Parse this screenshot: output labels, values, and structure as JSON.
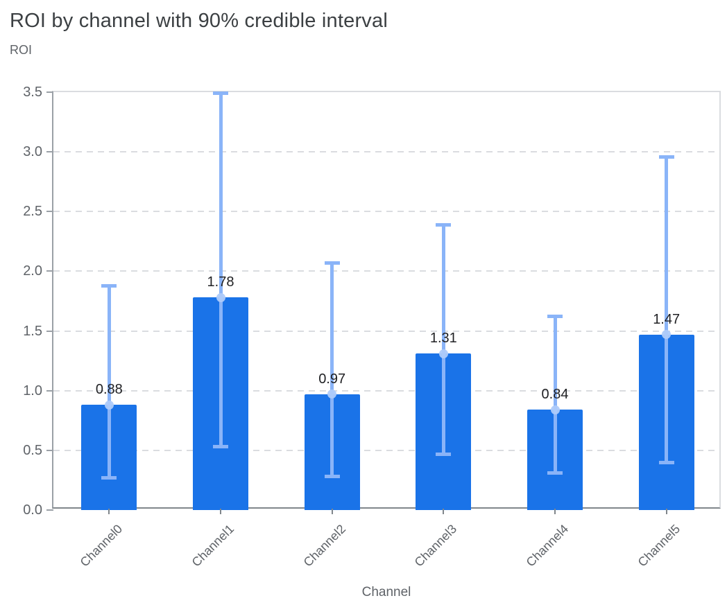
{
  "chart": {
    "title": "ROI by channel with 90% credible interval",
    "y_axis_title": "ROI",
    "x_axis_title": "Channel"
  },
  "chart_data": {
    "type": "bar",
    "title": "ROI by channel with 90% credible interval",
    "xlabel": "Channel",
    "ylabel": "ROI",
    "categories": [
      "Channel0",
      "Channel1",
      "Channel2",
      "Channel3",
      "Channel4",
      "Channel5"
    ],
    "values": [
      0.88,
      1.78,
      0.97,
      1.31,
      0.84,
      1.47
    ],
    "value_labels": [
      "0.88",
      "1.78",
      "0.97",
      "1.31",
      "0.84",
      "1.47"
    ],
    "error_bars": {
      "label": "90% credible interval",
      "lower": [
        0.27,
        0.53,
        0.28,
        0.47,
        0.31,
        0.4
      ],
      "upper": [
        1.88,
        3.49,
        2.07,
        2.39,
        1.62,
        2.96
      ]
    },
    "ylim": [
      0,
      3.5
    ],
    "yticks": [
      "0.0",
      "0.5",
      "1.0",
      "1.5",
      "2.0",
      "2.5",
      "3.0",
      "3.5"
    ],
    "grid": "horizontal-dashed",
    "legend": "none",
    "colors": {
      "bar": "#1A73E8",
      "error_bar": "#8AB4F8",
      "mean_point": "#AECBFA",
      "value_label": "#202124",
      "title": "#3C4043",
      "axis_text": "#5F6368",
      "gridline": "#DADCE0",
      "axis_line": "#80868B"
    }
  }
}
